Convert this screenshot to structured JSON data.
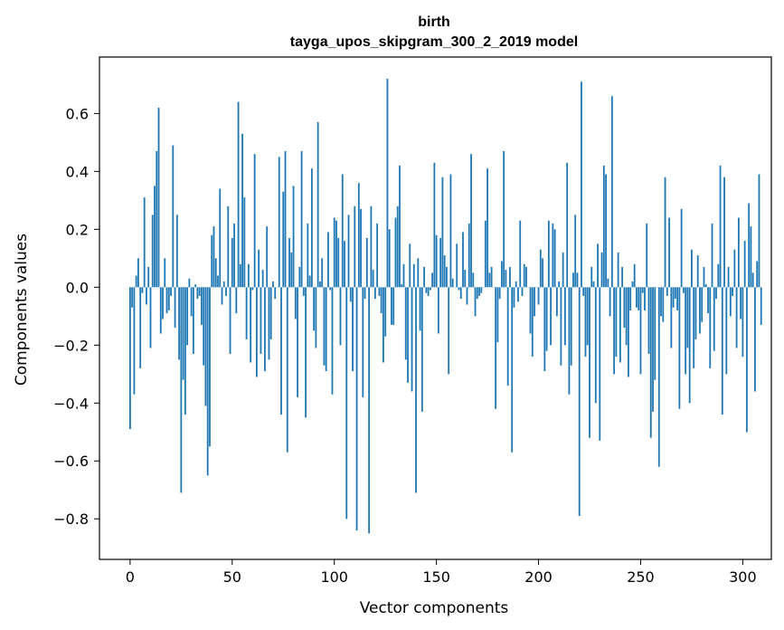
{
  "chart_data": {
    "type": "bar",
    "title": "birth",
    "subtitle": "tayga_upos_skipgram_300_2_2019 model",
    "xlabel": "Vector components",
    "ylabel": "Components values",
    "xlim": [
      -15,
      314
    ],
    "ylim": [
      -0.94,
      0.795
    ],
    "x_ticks": [
      0,
      50,
      100,
      150,
      200,
      250,
      300
    ],
    "y_ticks": [
      -0.8,
      -0.6,
      -0.4,
      -0.2,
      0.0,
      0.2,
      0.4,
      0.6
    ],
    "y_tick_labels": [
      "−0.8",
      "−0.6",
      "−0.4",
      "−0.2",
      "0.0",
      "0.2",
      "0.4",
      "0.6"
    ],
    "x_tick_labels": [
      "0",
      "50",
      "100",
      "150",
      "200",
      "250",
      "300"
    ],
    "bar_color": "#1f77b4",
    "values": [
      -0.49,
      -0.07,
      -0.37,
      0.04,
      0.1,
      -0.28,
      -0.02,
      0.31,
      -0.06,
      0.07,
      -0.21,
      0.25,
      0.35,
      0.47,
      0.62,
      -0.16,
      -0.11,
      0.1,
      -0.09,
      -0.08,
      -0.03,
      0.49,
      -0.14,
      0.25,
      -0.25,
      -0.71,
      -0.32,
      -0.44,
      -0.2,
      0.03,
      -0.1,
      -0.23,
      0.01,
      -0.04,
      -0.03,
      -0.13,
      -0.27,
      -0.41,
      -0.65,
      -0.55,
      0.18,
      0.21,
      0.1,
      0.04,
      0.34,
      -0.06,
      0.02,
      -0.03,
      0.28,
      -0.23,
      0.17,
      0.22,
      -0.09,
      0.64,
      0.08,
      0.53,
      0.31,
      -0.18,
      0.08,
      -0.26,
      -0.01,
      0.46,
      -0.31,
      0.13,
      -0.23,
      0.06,
      -0.29,
      0.21,
      -0.25,
      -0.18,
      0.02,
      -0.04,
      0.0,
      0.45,
      -0.44,
      0.33,
      0.47,
      -0.57,
      0.17,
      0.12,
      0.35,
      -0.11,
      -0.38,
      0.07,
      0.47,
      -0.03,
      -0.45,
      0.22,
      0.04,
      0.41,
      -0.15,
      -0.21,
      0.57,
      0.02,
      0.1,
      -0.27,
      -0.29,
      0.19,
      -0.01,
      -0.37,
      0.24,
      0.23,
      0.17,
      -0.2,
      0.39,
      0.16,
      -0.8,
      0.25,
      -0.05,
      -0.29,
      0.28,
      -0.84,
      0.36,
      0.27,
      -0.38,
      -0.04,
      0.17,
      -0.85,
      0.28,
      0.06,
      -0.04,
      0.22,
      -0.03,
      -0.09,
      -0.26,
      -0.17,
      0.72,
      0.2,
      -0.13,
      -0.13,
      0.24,
      0.28,
      0.42,
      0.01,
      0.08,
      -0.25,
      -0.33,
      0.15,
      -0.36,
      0.08,
      -0.71,
      0.1,
      -0.15,
      -0.43,
      0.07,
      -0.02,
      -0.03,
      -0.01,
      0.05,
      0.43,
      0.18,
      -0.16,
      0.17,
      0.38,
      0.11,
      0.07,
      -0.3,
      0.39,
      0.03,
      0.0,
      0.15,
      -0.01,
      -0.04,
      0.19,
      0.06,
      -0.06,
      0.22,
      0.46,
      0.05,
      -0.1,
      -0.04,
      -0.03,
      -0.02,
      0.0,
      0.23,
      0.41,
      0.05,
      0.07,
      0.0,
      -0.42,
      -0.19,
      -0.04,
      0.09,
      0.47,
      0.06,
      -0.34,
      0.07,
      -0.57,
      -0.07,
      0.02,
      -0.05,
      0.23,
      -0.03,
      0.08,
      0.07,
      0.0,
      -0.16,
      -0.24,
      -0.1,
      0.0,
      -0.06,
      0.13,
      0.1,
      -0.29,
      -0.22,
      0.23,
      -0.2,
      0.22,
      0.2,
      -0.1,
      0.02,
      -0.27,
      0.12,
      -0.2,
      0.43,
      -0.37,
      -0.27,
      0.05,
      0.25,
      0.05,
      -0.79,
      0.71,
      -0.03,
      -0.24,
      -0.2,
      -0.52,
      0.07,
      0.02,
      -0.4,
      0.15,
      -0.53,
      0.12,
      0.42,
      0.39,
      0.03,
      -0.1,
      0.66,
      -0.3,
      -0.24,
      0.12,
      -0.26,
      0.07,
      -0.14,
      -0.2,
      -0.31,
      -0.08,
      0.02,
      0.08,
      -0.07,
      -0.08,
      -0.3,
      -0.02,
      -0.08,
      0.22,
      -0.23,
      -0.52,
      -0.43,
      -0.32,
      0.0,
      -0.62,
      -0.1,
      -0.12,
      0.38,
      -0.03,
      0.24,
      -0.21,
      -0.07,
      -0.04,
      -0.08,
      -0.42,
      0.27,
      -0.02,
      -0.3,
      -0.21,
      -0.4,
      0.13,
      -0.28,
      -0.18,
      0.11,
      -0.16,
      -0.12,
      0.07,
      0.01,
      -0.09,
      -0.28,
      0.22,
      -0.22,
      -0.04,
      0.08,
      0.42,
      -0.44,
      0.38,
      -0.3,
      0.07,
      -0.1,
      -0.03,
      0.13,
      -0.21,
      0.24,
      -0.11,
      -0.24,
      0.16,
      -0.5,
      0.29,
      0.21,
      0.05,
      -0.36,
      0.09,
      0.39,
      -0.13
    ]
  }
}
